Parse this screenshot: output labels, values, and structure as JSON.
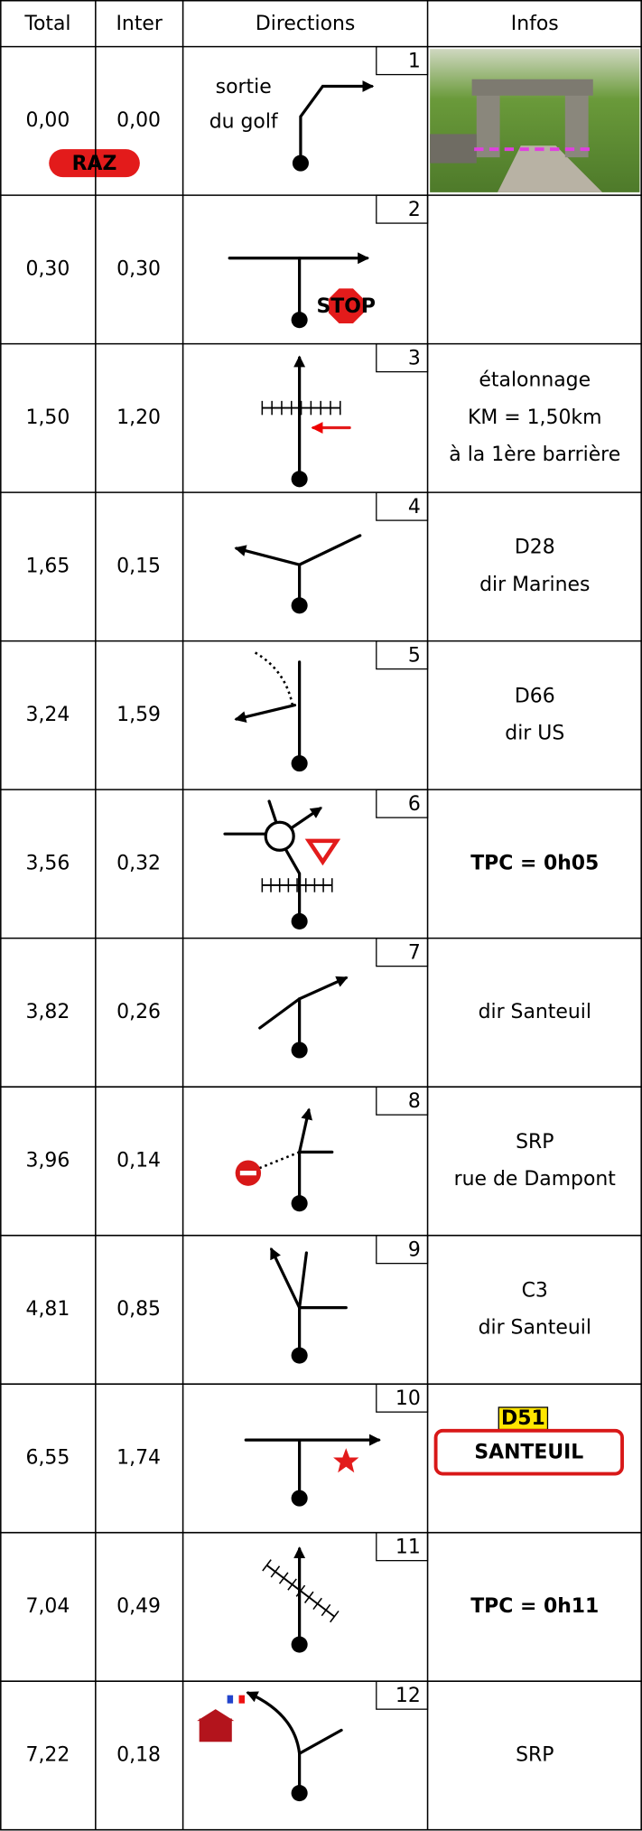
{
  "header": {
    "total": "Total",
    "inter": "Inter",
    "directions": "Directions",
    "infos": "Infos"
  },
  "rows": [
    {
      "number": "1",
      "total": "0,00",
      "inter": "0,00",
      "badge": "RAZ",
      "direction_text": [
        "sortie",
        "du golf"
      ]
    },
    {
      "number": "2",
      "total": "0,30",
      "inter": "0,30",
      "sign_text": "STOP"
    },
    {
      "number": "3",
      "total": "1,50",
      "inter": "1,20",
      "infos": [
        "étalonnage",
        "KM = 1,50km",
        "à la 1ère barrière"
      ]
    },
    {
      "number": "4",
      "total": "1,65",
      "inter": "0,15",
      "infos": [
        "D28",
        "dir Marines"
      ]
    },
    {
      "number": "5",
      "total": "3,24",
      "inter": "1,59",
      "infos": [
        "D66",
        "dir US"
      ]
    },
    {
      "number": "6",
      "total": "3,56",
      "inter": "0,32",
      "tpc": "TPC = 0h05"
    },
    {
      "number": "7",
      "total": "3,82",
      "inter": "0,26",
      "infos": [
        "dir Santeuil"
      ]
    },
    {
      "number": "8",
      "total": "3,96",
      "inter": "0,14",
      "infos": [
        "SRP",
        "rue de Dampont"
      ]
    },
    {
      "number": "9",
      "total": "4,81",
      "inter": "0,85",
      "infos": [
        "C3",
        "dir Santeuil"
      ]
    },
    {
      "number": "10",
      "total": "6,55",
      "inter": "1,74",
      "road_sign": {
        "road": "D51",
        "town": "SANTEUIL"
      }
    },
    {
      "number": "11",
      "total": "7,04",
      "inter": "0,49",
      "tpc": "TPC = 0h11"
    },
    {
      "number": "12",
      "total": "7,22",
      "inter": "0,18",
      "infos": [
        "SRP"
      ]
    }
  ]
}
